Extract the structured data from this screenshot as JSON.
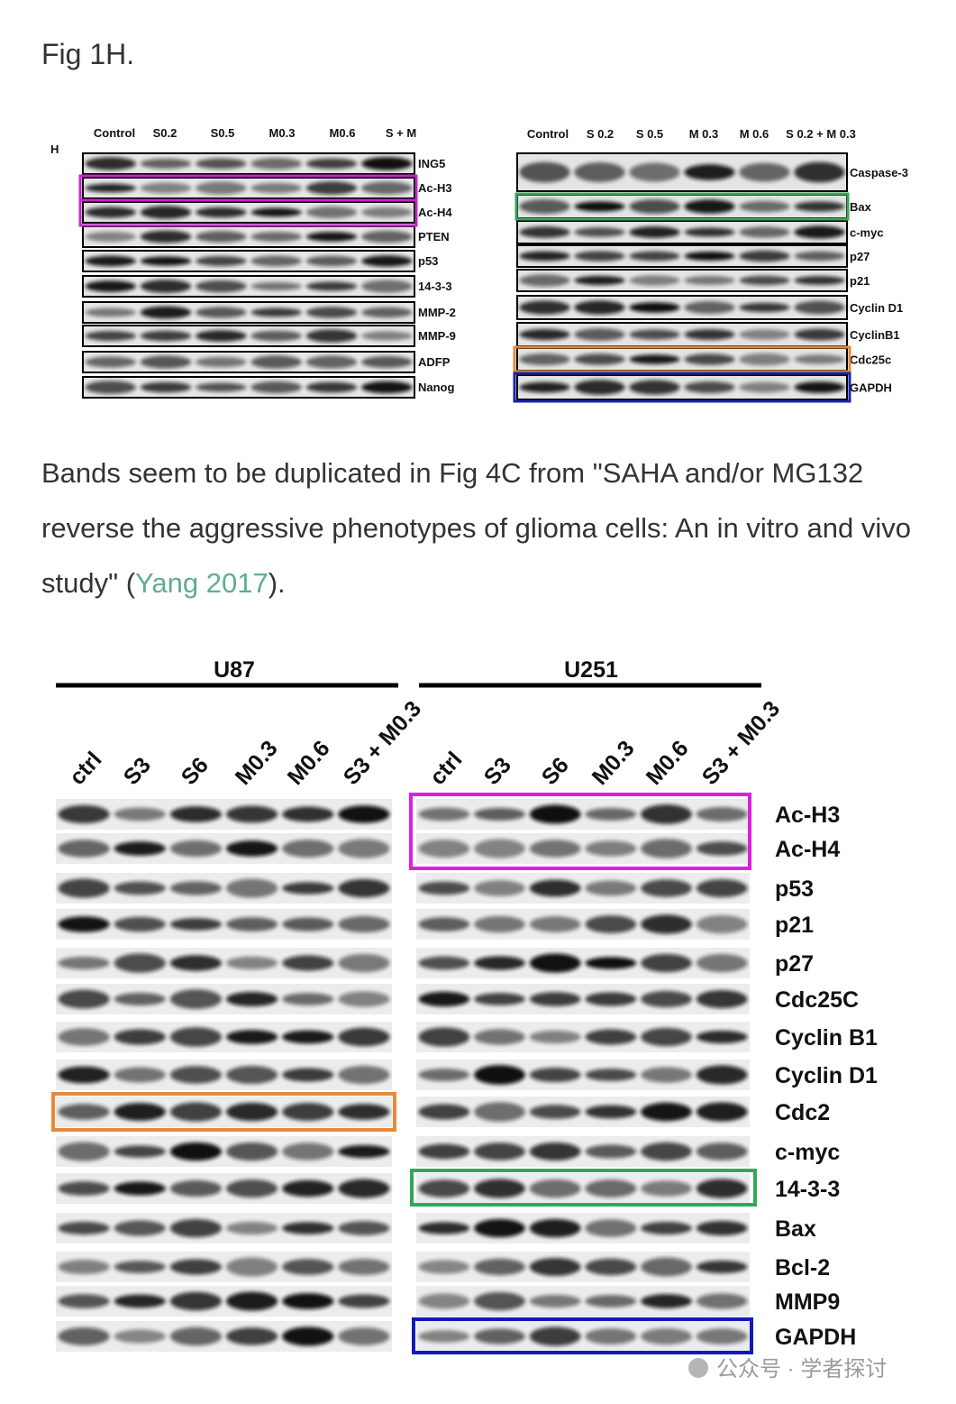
{
  "heading": "Fig 1H.",
  "figure_1h": {
    "panel_label": "H",
    "left": {
      "columns": [
        "Control",
        "S0.2",
        "S0.5",
        "M0.3",
        "M0.6",
        "S + M"
      ],
      "rows": [
        "ING5",
        "Ac-H3",
        "Ac-H4",
        "PTEN",
        "p53",
        "14-3-3",
        "MMP-2",
        "MMP-9",
        "ADFP",
        "Nanog"
      ]
    },
    "right": {
      "columns": [
        "Control",
        "S 0.2",
        "S 0.5",
        "M 0.3",
        "M 0.6",
        "S 0.2 + M 0.3"
      ],
      "rows": [
        "Caspase-3",
        "Bax",
        "c-myc",
        "p27",
        "p21",
        "Cyclin D1",
        "CyclinB1",
        "Cdc25c",
        "GAPDH"
      ]
    }
  },
  "paragraph": {
    "text_before": "Bands seem to be duplicated in Fig 4C from \"SAHA and/or MG132 reverse the aggressive phenotypes of glioma cells: An in vitro and vivo study\" (",
    "link": "Yang 2017",
    "text_after": ")."
  },
  "figure_4c": {
    "groups": [
      {
        "name": "U87",
        "columns": [
          "ctrl",
          "S3",
          "S6",
          "M0.3",
          "M0.6",
          "S3 + M0.3"
        ]
      },
      {
        "name": "U251",
        "columns": [
          "ctrl",
          "S3",
          "S6",
          "M0.3",
          "M0.6",
          "S3 + M0.3"
        ]
      }
    ],
    "rows": [
      "Ac-H3",
      "Ac-H4",
      "p53",
      "p21",
      "p27",
      "Cdc25C",
      "Cyclin B1",
      "Cyclin D1",
      "Cdc2",
      "c-myc",
      "14-3-3",
      "Bax",
      "Bcl-2",
      "MMP9",
      "GAPDH"
    ]
  },
  "watermark": "公众号 · 学者探讨"
}
